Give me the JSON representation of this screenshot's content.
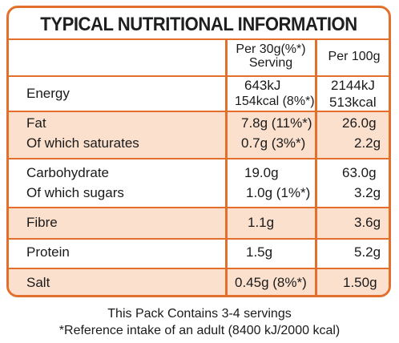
{
  "title": "TYPICAL NUTRITIONAL INFORMATION",
  "headers": {
    "per_serving_line1": "Per 30g(%*)",
    "per_serving_line2": "Serving",
    "per_100g": "Per 100g"
  },
  "rows": {
    "energy": {
      "label": "Energy",
      "serving_kj": "643kJ",
      "serving_kcal": "154kcal (8%*)",
      "per100_kj": "2144kJ",
      "per100_kcal": "513kcal"
    },
    "fat": {
      "label": "Fat",
      "serving": "7.8g (11%*)",
      "per100": "26.0g"
    },
    "saturates": {
      "label": "Of which saturates",
      "serving": "0.7g (3%*)",
      "per100": "2.2g"
    },
    "carbohydrate": {
      "label": "Carbohydrate",
      "serving": "19.0g",
      "per100": "63.0g"
    },
    "sugars": {
      "label": "Of which sugars",
      "serving": "1.0g (1%*)",
      "per100": "3.2g"
    },
    "fibre": {
      "label": "Fibre",
      "serving": "1.1g",
      "per100": "3.6g"
    },
    "protein": {
      "label": "Protein",
      "serving": "1.5g",
      "per100": "5.2g"
    },
    "salt": {
      "label": "Salt",
      "serving": "0.45g (8%*)",
      "per100": "1.50g"
    }
  },
  "footer": {
    "line1": "This Pack Contains 3-4 servings",
    "line2": "*Reference intake of an adult (8400 kJ/2000 kcal)"
  },
  "colors": {
    "accent": "#e36f2c",
    "band": "#fbe0ce"
  }
}
